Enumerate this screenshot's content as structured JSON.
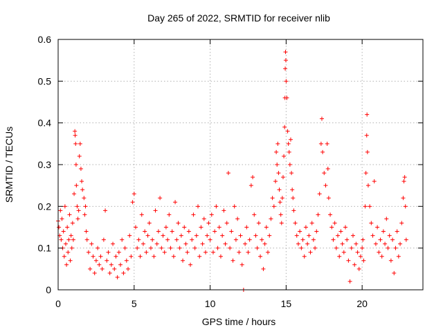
{
  "chart_data": {
    "type": "scatter",
    "title": "Day 265 of 2022, SRMTID for receiver nlib",
    "xlabel": "GPS time / hours",
    "ylabel": "SRMTID / TECUs",
    "xlim": [
      0,
      24
    ],
    "ylim": [
      0,
      0.6
    ],
    "xticks": [
      0,
      5,
      10,
      15,
      20
    ],
    "xtick_labels": [
      "0",
      "5",
      "10",
      "15",
      "20"
    ],
    "yticks": [
      0,
      0.1,
      0.2,
      0.3,
      0.4,
      0.5,
      0.6
    ],
    "ytick_labels": [
      "0",
      "0.1",
      "0.2",
      "0.3",
      "0.4",
      "0.5",
      "0.6"
    ],
    "grid": true,
    "marker": "+",
    "color": "#ff0000",
    "series": [
      {
        "name": "SRMTID",
        "points": [
          [
            0.0,
            0.165
          ],
          [
            0.05,
            0.15
          ],
          [
            0.1,
            0.13
          ],
          [
            0.15,
            0.19
          ],
          [
            0.2,
            0.12
          ],
          [
            0.25,
            0.17
          ],
          [
            0.3,
            0.1
          ],
          [
            0.35,
            0.14
          ],
          [
            0.4,
            0.08
          ],
          [
            0.45,
            0.2
          ],
          [
            0.5,
            0.11
          ],
          [
            0.55,
            0.06
          ],
          [
            0.6,
            0.15
          ],
          [
            0.65,
            0.09
          ],
          [
            0.7,
            0.12
          ],
          [
            0.75,
            0.18
          ],
          [
            0.8,
            0.07
          ],
          [
            0.85,
            0.13
          ],
          [
            0.9,
            0.1
          ],
          [
            0.95,
            0.16
          ],
          [
            1.0,
            0.12
          ],
          [
            1.05,
            0.23
          ],
          [
            1.1,
            0.38
          ],
          [
            1.12,
            0.37
          ],
          [
            1.15,
            0.35
          ],
          [
            1.18,
            0.3
          ],
          [
            1.2,
            0.25
          ],
          [
            1.25,
            0.2
          ],
          [
            1.3,
            0.17
          ],
          [
            1.35,
            0.19
          ],
          [
            1.4,
            0.32
          ],
          [
            1.45,
            0.35
          ],
          [
            1.5,
            0.29
          ],
          [
            1.55,
            0.26
          ],
          [
            1.6,
            0.24
          ],
          [
            1.7,
            0.22
          ],
          [
            1.75,
            0.18
          ],
          [
            1.8,
            0.2
          ],
          [
            1.85,
            0.14
          ],
          [
            1.9,
            0.12
          ],
          [
            2.0,
            0.09
          ],
          [
            2.1,
            0.05
          ],
          [
            2.2,
            0.11
          ],
          [
            2.3,
            0.08
          ],
          [
            2.4,
            0.04
          ],
          [
            2.5,
            0.07
          ],
          [
            2.6,
            0.1
          ],
          [
            2.7,
            0.06
          ],
          [
            2.8,
            0.08
          ],
          [
            2.9,
            0.05
          ],
          [
            3.0,
            0.12
          ],
          [
            3.1,
            0.19
          ],
          [
            3.2,
            0.07
          ],
          [
            3.3,
            0.09
          ],
          [
            3.4,
            0.04
          ],
          [
            3.5,
            0.06
          ],
          [
            3.6,
            0.11
          ],
          [
            3.7,
            0.05
          ],
          [
            3.8,
            0.08
          ],
          [
            3.9,
            0.03
          ],
          [
            4.0,
            0.09
          ],
          [
            4.1,
            0.06
          ],
          [
            4.2,
            0.12
          ],
          [
            4.3,
            0.04
          ],
          [
            4.4,
            0.1
          ],
          [
            4.5,
            0.07
          ],
          [
            4.6,
            0.05
          ],
          [
            4.7,
            0.13
          ],
          [
            4.8,
            0.08
          ],
          [
            4.9,
            0.21
          ],
          [
            5.0,
            0.23
          ],
          [
            5.1,
            0.15
          ],
          [
            5.2,
            0.1
          ],
          [
            5.3,
            0.12
          ],
          [
            5.4,
            0.08
          ],
          [
            5.5,
            0.18
          ],
          [
            5.6,
            0.11
          ],
          [
            5.7,
            0.14
          ],
          [
            5.8,
            0.09
          ],
          [
            5.9,
            0.13
          ],
          [
            6.0,
            0.16
          ],
          [
            6.1,
            0.1
          ],
          [
            6.2,
            0.12
          ],
          [
            6.3,
            0.08
          ],
          [
            6.4,
            0.19
          ],
          [
            6.5,
            0.11
          ],
          [
            6.6,
            0.14
          ],
          [
            6.7,
            0.22
          ],
          [
            6.8,
            0.1
          ],
          [
            6.9,
            0.13
          ],
          [
            7.0,
            0.09
          ],
          [
            7.1,
            0.15
          ],
          [
            7.2,
            0.12
          ],
          [
            7.3,
            0.18
          ],
          [
            7.4,
            0.1
          ],
          [
            7.5,
            0.14
          ],
          [
            7.6,
            0.08
          ],
          [
            7.7,
            0.21
          ],
          [
            7.8,
            0.12
          ],
          [
            7.9,
            0.16
          ],
          [
            8.0,
            0.1
          ],
          [
            8.1,
            0.13
          ],
          [
            8.2,
            0.07
          ],
          [
            8.3,
            0.15
          ],
          [
            8.4,
            0.11
          ],
          [
            8.5,
            0.09
          ],
          [
            8.6,
            0.14
          ],
          [
            8.7,
            0.06
          ],
          [
            8.8,
            0.12
          ],
          [
            8.9,
            0.18
          ],
          [
            9.0,
            0.1
          ],
          [
            9.1,
            0.13
          ],
          [
            9.2,
            0.2
          ],
          [
            9.3,
            0.08
          ],
          [
            9.4,
            0.15
          ],
          [
            9.5,
            0.11
          ],
          [
            9.6,
            0.17
          ],
          [
            9.7,
            0.09
          ],
          [
            9.8,
            0.13
          ],
          [
            9.9,
            0.16
          ],
          [
            10.0,
            0.12
          ],
          [
            10.1,
            0.18
          ],
          [
            10.2,
            0.09
          ],
          [
            10.3,
            0.14
          ],
          [
            10.4,
            0.2
          ],
          [
            10.5,
            0.1
          ],
          [
            10.6,
            0.15
          ],
          [
            10.7,
            0.08
          ],
          [
            10.8,
            0.13
          ],
          [
            10.9,
            0.19
          ],
          [
            11.0,
            0.11
          ],
          [
            11.1,
            0.16
          ],
          [
            11.2,
            0.28
          ],
          [
            11.3,
            0.1
          ],
          [
            11.4,
            0.14
          ],
          [
            11.5,
            0.07
          ],
          [
            11.6,
            0.2
          ],
          [
            11.7,
            0.12
          ],
          [
            11.8,
            0.17
          ],
          [
            11.9,
            0.09
          ],
          [
            12.0,
            0.13
          ],
          [
            12.1,
            0.06
          ],
          [
            12.2,
            0.0
          ],
          [
            12.3,
            0.11
          ],
          [
            12.4,
            0.15
          ],
          [
            12.5,
            0.09
          ],
          [
            12.6,
            0.12
          ],
          [
            12.7,
            0.25
          ],
          [
            12.8,
            0.27
          ],
          [
            12.9,
            0.18
          ],
          [
            13.0,
            0.13
          ],
          [
            13.1,
            0.1
          ],
          [
            13.2,
            0.16
          ],
          [
            13.3,
            0.08
          ],
          [
            13.4,
            0.12
          ],
          [
            13.5,
            0.05
          ],
          [
            13.6,
            0.11
          ],
          [
            13.7,
            0.15
          ],
          [
            13.8,
            0.09
          ],
          [
            13.9,
            0.13
          ],
          [
            14.0,
            0.17
          ],
          [
            14.1,
            0.22
          ],
          [
            14.2,
            0.2
          ],
          [
            14.3,
            0.26
          ],
          [
            14.35,
            0.33
          ],
          [
            14.4,
            0.3
          ],
          [
            14.45,
            0.35
          ],
          [
            14.5,
            0.28
          ],
          [
            14.55,
            0.24
          ],
          [
            14.6,
            0.21
          ],
          [
            14.65,
            0.18
          ],
          [
            14.7,
            0.16
          ],
          [
            14.75,
            0.22
          ],
          [
            14.8,
            0.27
          ],
          [
            14.85,
            0.32
          ],
          [
            14.9,
            0.39
          ],
          [
            14.92,
            0.46
          ],
          [
            14.94,
            0.53
          ],
          [
            14.96,
            0.57
          ],
          [
            14.98,
            0.55
          ],
          [
            15.0,
            0.5
          ],
          [
            15.05,
            0.46
          ],
          [
            15.1,
            0.38
          ],
          [
            15.15,
            0.35
          ],
          [
            15.2,
            0.33
          ],
          [
            15.25,
            0.3
          ],
          [
            15.3,
            0.36
          ],
          [
            15.35,
            0.28
          ],
          [
            15.4,
            0.24
          ],
          [
            15.45,
            0.22
          ],
          [
            15.5,
            0.19
          ],
          [
            15.6,
            0.16
          ],
          [
            15.7,
            0.13
          ],
          [
            15.8,
            0.11
          ],
          [
            15.9,
            0.14
          ],
          [
            16.0,
            0.1
          ],
          [
            16.1,
            0.12
          ],
          [
            16.2,
            0.08
          ],
          [
            16.3,
            0.15
          ],
          [
            16.4,
            0.11
          ],
          [
            16.5,
            0.13
          ],
          [
            16.6,
            0.09
          ],
          [
            16.7,
            0.16
          ],
          [
            16.8,
            0.12
          ],
          [
            16.9,
            0.1
          ],
          [
            17.0,
            0.14
          ],
          [
            17.1,
            0.18
          ],
          [
            17.2,
            0.23
          ],
          [
            17.3,
            0.35
          ],
          [
            17.35,
            0.41
          ],
          [
            17.4,
            0.33
          ],
          [
            17.5,
            0.28
          ],
          [
            17.6,
            0.25
          ],
          [
            17.7,
            0.35
          ],
          [
            17.75,
            0.29
          ],
          [
            17.8,
            0.22
          ],
          [
            17.9,
            0.18
          ],
          [
            18.0,
            0.15
          ],
          [
            18.1,
            0.12
          ],
          [
            18.2,
            0.16
          ],
          [
            18.3,
            0.1
          ],
          [
            18.4,
            0.13
          ],
          [
            18.5,
            0.08
          ],
          [
            18.6,
            0.14
          ],
          [
            18.7,
            0.11
          ],
          [
            18.8,
            0.09
          ],
          [
            18.9,
            0.15
          ],
          [
            19.0,
            0.12
          ],
          [
            19.1,
            0.07
          ],
          [
            19.2,
            0.02
          ],
          [
            19.3,
            0.1
          ],
          [
            19.4,
            0.13
          ],
          [
            19.5,
            0.06
          ],
          [
            19.6,
            0.11
          ],
          [
            19.7,
            0.09
          ],
          [
            19.8,
            0.05
          ],
          [
            19.9,
            0.08
          ],
          [
            20.0,
            0.1
          ],
          [
            20.05,
            0.12
          ],
          [
            20.1,
            0.07
          ],
          [
            20.2,
            0.2
          ],
          [
            20.25,
            0.28
          ],
          [
            20.3,
            0.37
          ],
          [
            20.32,
            0.42
          ],
          [
            20.35,
            0.33
          ],
          [
            20.4,
            0.25
          ],
          [
            20.5,
            0.2
          ],
          [
            20.6,
            0.16
          ],
          [
            20.7,
            0.13
          ],
          [
            20.8,
            0.26
          ],
          [
            20.9,
            0.11
          ],
          [
            21.0,
            0.15
          ],
          [
            21.1,
            0.09
          ],
          [
            21.2,
            0.12
          ],
          [
            21.3,
            0.08
          ],
          [
            21.4,
            0.14
          ],
          [
            21.5,
            0.11
          ],
          [
            21.6,
            0.17
          ],
          [
            21.7,
            0.1
          ],
          [
            21.8,
            0.13
          ],
          [
            21.9,
            0.07
          ],
          [
            22.0,
            0.12
          ],
          [
            22.1,
            0.04
          ],
          [
            22.2,
            0.1
          ],
          [
            22.3,
            0.14
          ],
          [
            22.4,
            0.08
          ],
          [
            22.5,
            0.11
          ],
          [
            22.6,
            0.16
          ],
          [
            22.7,
            0.22
          ],
          [
            22.75,
            0.26
          ],
          [
            22.8,
            0.27
          ],
          [
            22.85,
            0.2
          ],
          [
            22.9,
            0.12
          ]
        ]
      }
    ]
  }
}
